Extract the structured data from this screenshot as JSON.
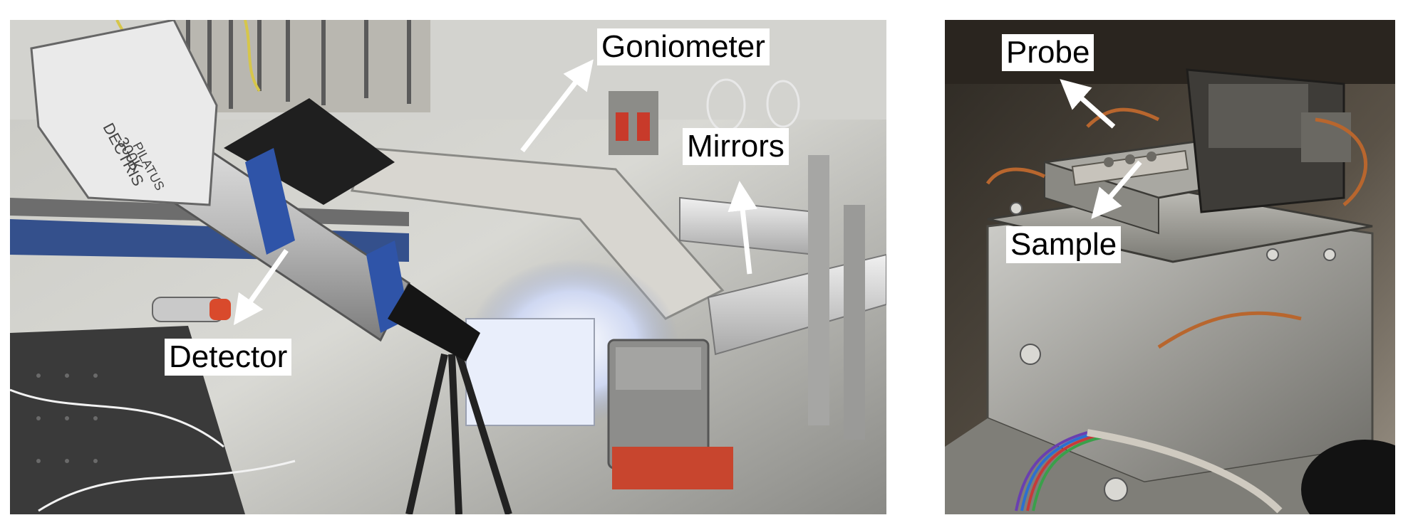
{
  "figure": {
    "left_panel": {
      "labels": {
        "goniometer": "Goniometer",
        "mirrors": "Mirrors",
        "detector": "Detector"
      },
      "detector_brand_text": "DECTRIS",
      "detector_model_text": "300K",
      "detector_sub_text": "PILATUS"
    },
    "right_panel": {
      "labels": {
        "probe": "Probe",
        "sample": "Sample"
      }
    }
  }
}
